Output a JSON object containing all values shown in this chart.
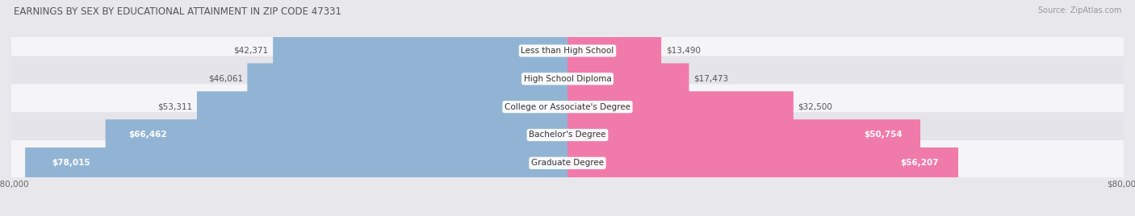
{
  "title": "EARNINGS BY SEX BY EDUCATIONAL ATTAINMENT IN ZIP CODE 47331",
  "source": "Source: ZipAtlas.com",
  "categories": [
    "Less than High School",
    "High School Diploma",
    "College or Associate's Degree",
    "Bachelor's Degree",
    "Graduate Degree"
  ],
  "male_values": [
    42371,
    46061,
    53311,
    66462,
    78015
  ],
  "female_values": [
    13490,
    17473,
    32500,
    50754,
    56207
  ],
  "male_color": "#92b4d4",
  "female_color": "#f07aaa",
  "bg_color": "#e8e8ec",
  "row_bg_light": "#f5f5f8",
  "row_bg_dark": "#e4e4ea",
  "max_value": 80000,
  "title_fontsize": 8.5,
  "source_fontsize": 7,
  "bar_label_fontsize": 7.5,
  "category_fontsize": 7.5,
  "axis_label_fontsize": 7.5,
  "inside_label_threshold_male": 55000,
  "inside_label_threshold_female": 40000
}
